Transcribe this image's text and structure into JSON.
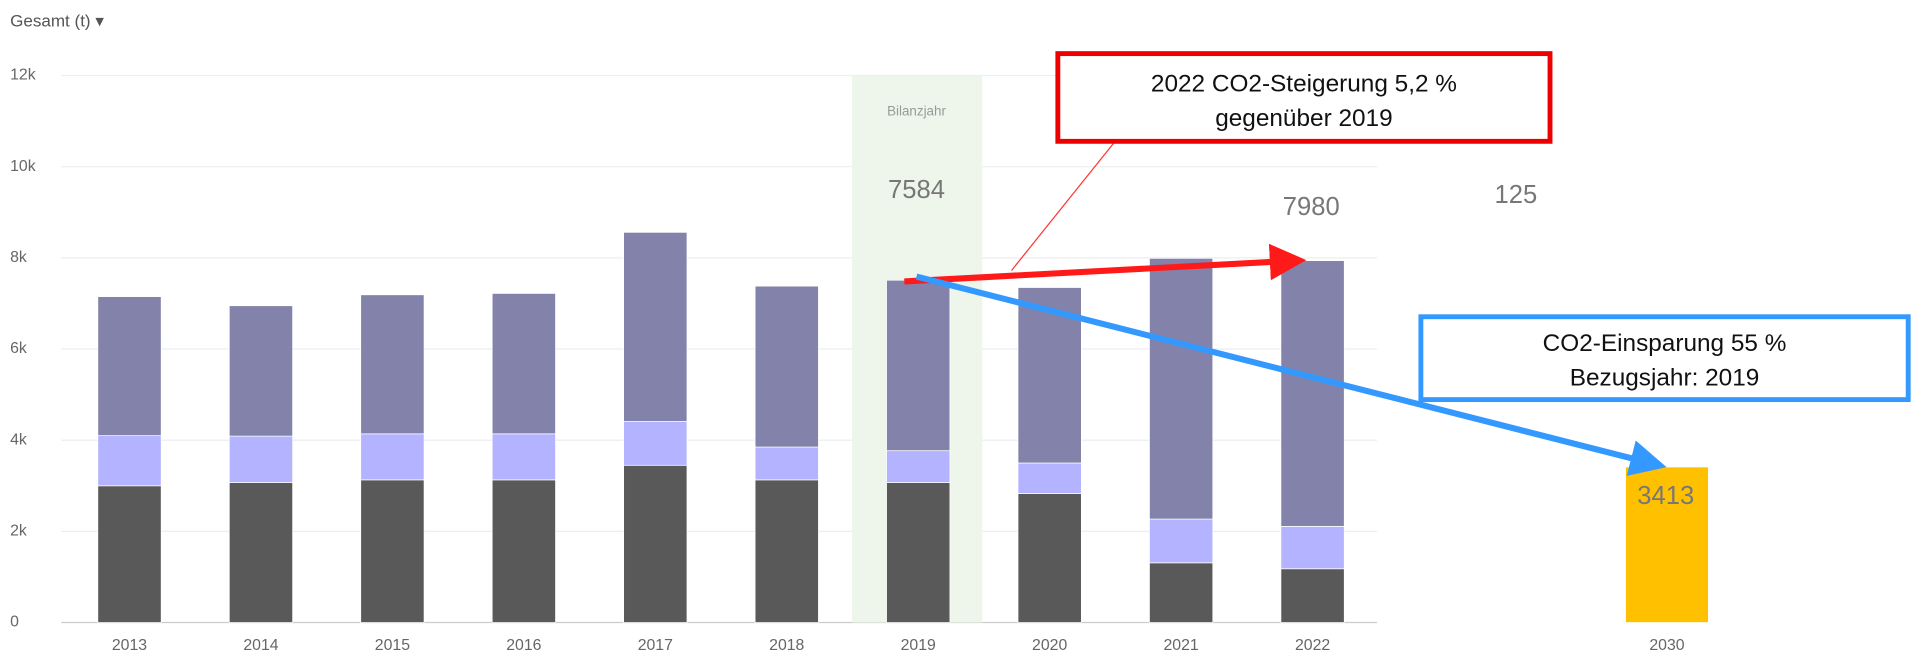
{
  "header": {
    "title": "Gesamt (t) ▾"
  },
  "chart_data": {
    "type": "bar",
    "stacked": true,
    "categories": [
      "2013",
      "2014",
      "2015",
      "2016",
      "2017",
      "2018",
      "2019",
      "2020",
      "2021",
      "2022",
      "2030"
    ],
    "series": [
      {
        "color": "#595959",
        "values": [
          3000,
          3070,
          3130,
          3130,
          3450,
          3130,
          3070,
          2830,
          1310,
          1180,
          null
        ]
      },
      {
        "color": "#b3b3ff",
        "values": [
          1100,
          1020,
          1010,
          1010,
          960,
          720,
          700,
          670,
          960,
          930,
          null
        ]
      },
      {
        "color": "#8282aa",
        "values": [
          3050,
          2860,
          3050,
          3080,
          4150,
          3530,
          3740,
          3850,
          5720,
          5830,
          null
        ]
      },
      {
        "color": "#ffc000",
        "values": [
          null,
          null,
          null,
          null,
          null,
          null,
          null,
          null,
          null,
          null,
          3413
        ]
      }
    ],
    "ylim": [
      0,
      12000
    ],
    "yticks": [
      {
        "value": 0,
        "label": "0"
      },
      {
        "value": 2000,
        "label": "2k"
      },
      {
        "value": 4000,
        "label": "4k"
      },
      {
        "value": 6000,
        "label": "6k"
      },
      {
        "value": 8000,
        "label": "8k"
      },
      {
        "value": 10000,
        "label": "10k"
      },
      {
        "value": 12000,
        "label": "12k"
      }
    ],
    "grid": true,
    "highlight": {
      "category": "2019",
      "label": "Bilanzjahr"
    },
    "annotations": {
      "value_2019": "7584",
      "value_2022": "7980",
      "other": "125",
      "value_2030": "3413",
      "increase_box": [
        "2022 CO2-Steigerung 5,2 %",
        "gegenüber 2019"
      ],
      "saving_box": [
        "CO2-Einsparung 55 %",
        "Bezugsjahr: 2019"
      ]
    }
  }
}
